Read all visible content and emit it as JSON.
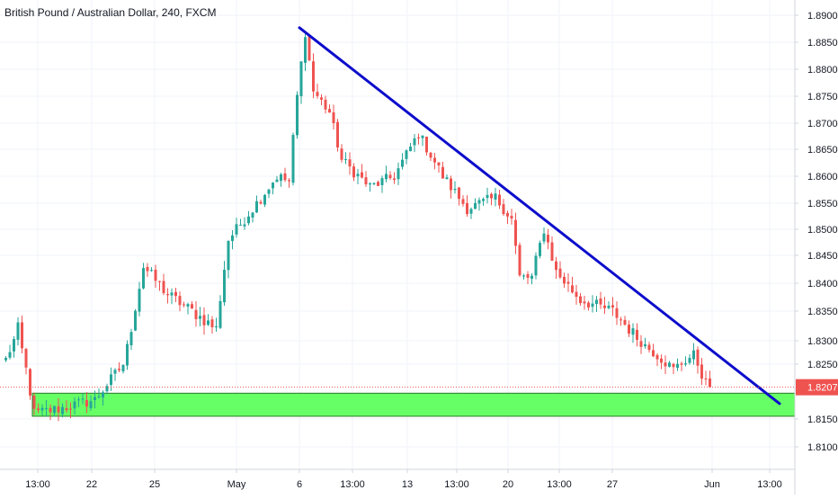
{
  "chart_data": {
    "type": "candlestick",
    "title": "British Pound / Australian Dollar, 240, FXCM",
    "y_ticks": [
      "1.81000",
      "1.81500",
      "1.82500",
      "1.83000",
      "1.83500",
      "1.84000",
      "1.84500",
      "1.85000",
      "1.85500",
      "1.86000",
      "1.86500",
      "1.87000",
      "1.87500",
      "1.88000",
      "1.88500",
      "1.89000"
    ],
    "x_ticks": [
      "13:00",
      "22",
      "25",
      "May",
      "6",
      "13:00",
      "13",
      "13:00",
      "20",
      "13:00",
      "27",
      "Jun",
      "13:00"
    ],
    "ylim": [
      1.8055,
      1.892
    ],
    "last_price": 1.82079,
    "last_price_label": "1.82079",
    "colors": {
      "up": "#26a69a",
      "down": "#ef5350",
      "trendline": "#0d0dcc",
      "zone": "#66ff66",
      "zone_border": "#2a7a2a",
      "price_line": "#ef5350"
    },
    "trendline": {
      "start": {
        "x_frac": 0.0,
        "price": 1.8877
      },
      "end": {
        "x_frac": 1.0,
        "price": 1.8178
      }
    },
    "support_zone": {
      "top": 1.8197,
      "bottom": 1.8155
    },
    "price_path": [
      {
        "pos": 0,
        "price": 1.826
      },
      {
        "pos": 3,
        "price": 1.832
      },
      {
        "pos": 7,
        "price": 1.816
      },
      {
        "pos": 14,
        "price": 1.817
      },
      {
        "pos": 22,
        "price": 1.8185
      },
      {
        "pos": 29,
        "price": 1.825
      },
      {
        "pos": 34,
        "price": 1.843
      },
      {
        "pos": 40,
        "price": 1.838
      },
      {
        "pos": 46,
        "price": 1.835
      },
      {
        "pos": 52,
        "price": 1.832
      },
      {
        "pos": 55,
        "price": 1.848
      },
      {
        "pos": 61,
        "price": 1.854
      },
      {
        "pos": 67,
        "price": 1.86
      },
      {
        "pos": 70,
        "price": 1.859
      },
      {
        "pos": 72,
        "price": 1.875
      },
      {
        "pos": 74,
        "price": 1.887
      },
      {
        "pos": 76,
        "price": 1.876
      },
      {
        "pos": 80,
        "price": 1.872
      },
      {
        "pos": 83,
        "price": 1.863
      },
      {
        "pos": 90,
        "price": 1.858
      },
      {
        "pos": 96,
        "price": 1.86
      },
      {
        "pos": 102,
        "price": 1.868
      },
      {
        "pos": 108,
        "price": 1.86
      },
      {
        "pos": 114,
        "price": 1.854
      },
      {
        "pos": 121,
        "price": 1.856
      },
      {
        "pos": 125,
        "price": 1.852
      },
      {
        "pos": 127,
        "price": 1.841
      },
      {
        "pos": 130,
        "price": 1.841
      },
      {
        "pos": 133,
        "price": 1.85
      },
      {
        "pos": 136,
        "price": 1.842
      },
      {
        "pos": 142,
        "price": 1.837
      },
      {
        "pos": 150,
        "price": 1.835
      },
      {
        "pos": 158,
        "price": 1.829
      },
      {
        "pos": 165,
        "price": 1.824
      },
      {
        "pos": 170,
        "price": 1.827
      },
      {
        "pos": 174,
        "price": 1.8195
      }
    ]
  }
}
